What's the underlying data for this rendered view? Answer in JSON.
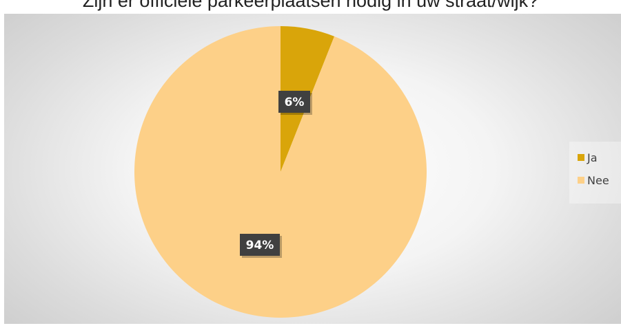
{
  "chart_data": {
    "type": "pie",
    "title": "Zijn er officiële parkeerplaatsen nodig in uw straat/wijk?",
    "categories": [
      "Ja",
      "Nee"
    ],
    "values": [
      6,
      94
    ],
    "data_labels": [
      "6%",
      "94%"
    ],
    "colors": [
      "#d9a50a",
      "#fdd088"
    ],
    "legend": {
      "position": "right",
      "entries": [
        {
          "label": "Ja",
          "color": "#d9a50a"
        },
        {
          "label": "Nee",
          "color": "#fdd088"
        }
      ]
    }
  }
}
